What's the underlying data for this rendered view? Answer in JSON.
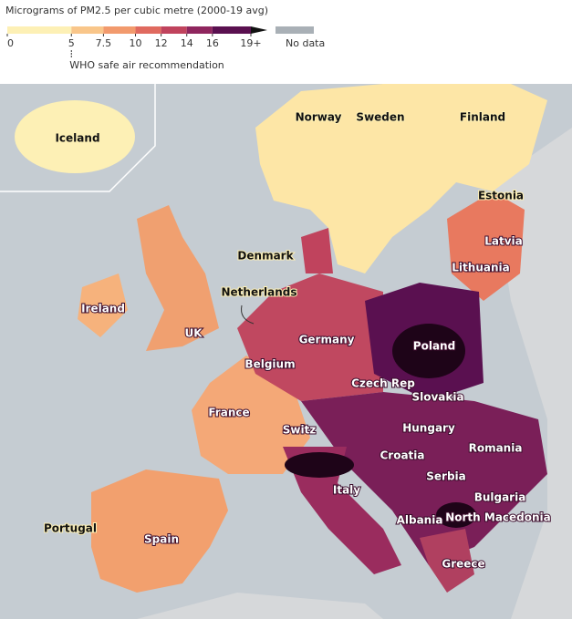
{
  "legend": {
    "title": "Micrograms of PM2.5 per cubic metre (2000-19 avg)",
    "ticks": [
      0,
      5,
      7.5,
      10,
      12,
      14,
      16,
      {
        "value": 19,
        "label": "19+"
      }
    ],
    "colors": [
      "#fdf0b5",
      "#f9c68a",
      "#f29a6d",
      "#e06a5f",
      "#c0435d",
      "#8f265e",
      "#5a1050"
    ],
    "no_data_label": "No data",
    "who_label": "WHO safe air recommendation",
    "who_value": 5
  },
  "countries": [
    {
      "name": "Iceland"
    },
    {
      "name": "Norway"
    },
    {
      "name": "Sweden"
    },
    {
      "name": "Finland"
    },
    {
      "name": "Estonia"
    },
    {
      "name": "Latvia"
    },
    {
      "name": "Lithuania"
    },
    {
      "name": "Denmark"
    },
    {
      "name": "Netherlands"
    },
    {
      "name": "Ireland"
    },
    {
      "name": "UK"
    },
    {
      "name": "Germany"
    },
    {
      "name": "Poland"
    },
    {
      "name": "Belgium"
    },
    {
      "name": "Czech Rep"
    },
    {
      "name": "Slovakia"
    },
    {
      "name": "France"
    },
    {
      "name": "Hungary"
    },
    {
      "name": "Switz"
    },
    {
      "name": "Romania"
    },
    {
      "name": "Croatia"
    },
    {
      "name": "Serbia"
    },
    {
      "name": "Italy"
    },
    {
      "name": "Bulgaria"
    },
    {
      "name": "Albania"
    },
    {
      "name": "North Macedonia"
    },
    {
      "name": "Portugal"
    },
    {
      "name": "Spain"
    },
    {
      "name": "Greece"
    }
  ]
}
